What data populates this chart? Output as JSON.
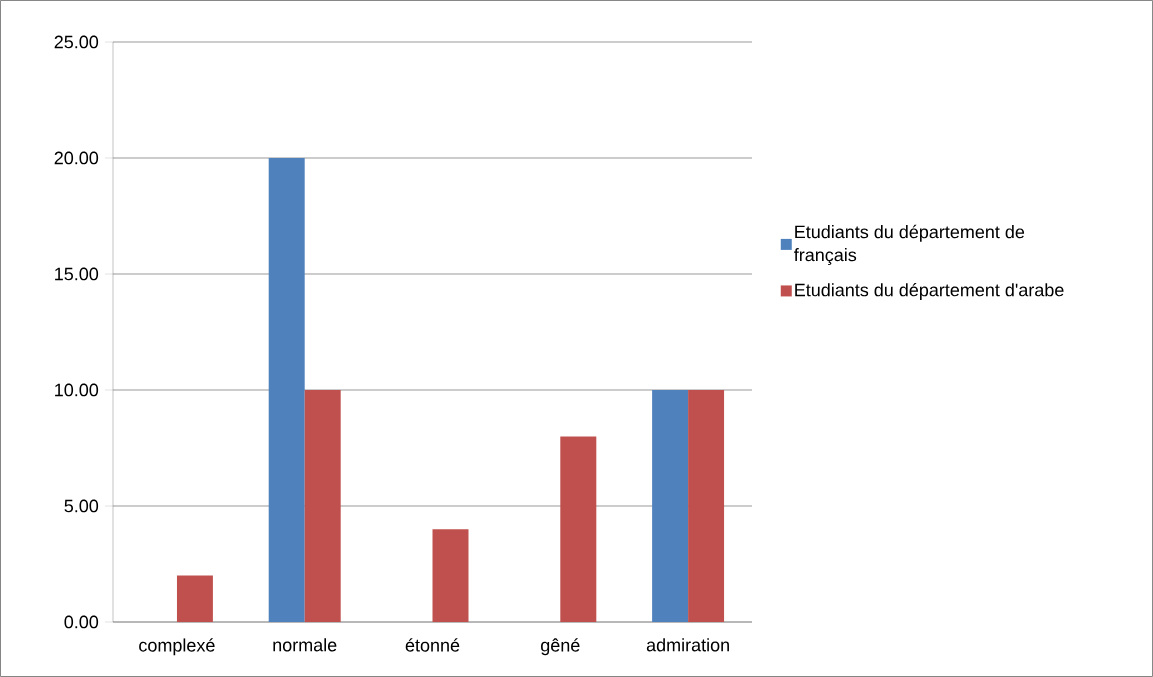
{
  "chart_data": {
    "type": "bar",
    "categories": [
      "complexé",
      "normale",
      "étonné",
      "gêné",
      "admiration"
    ],
    "series": [
      {
        "name": "Etudiants du département de français",
        "color": "#4f81bd",
        "values": [
          0,
          20,
          0,
          0,
          10
        ]
      },
      {
        "name": "Etudiants du département d'arabe",
        "color": "#c0504d",
        "values": [
          2,
          10,
          4,
          8,
          10
        ]
      }
    ],
    "ylim": [
      0,
      25
    ],
    "yticks": [
      {
        "value": 0,
        "label": "0.00"
      },
      {
        "value": 5,
        "label": "5.00"
      },
      {
        "value": 10,
        "label": "10.00"
      },
      {
        "value": 15,
        "label": "15.00"
      },
      {
        "value": 20,
        "label": "20.00"
      },
      {
        "value": 25,
        "label": "25.00"
      }
    ],
    "grid": "y",
    "legend": "right"
  }
}
